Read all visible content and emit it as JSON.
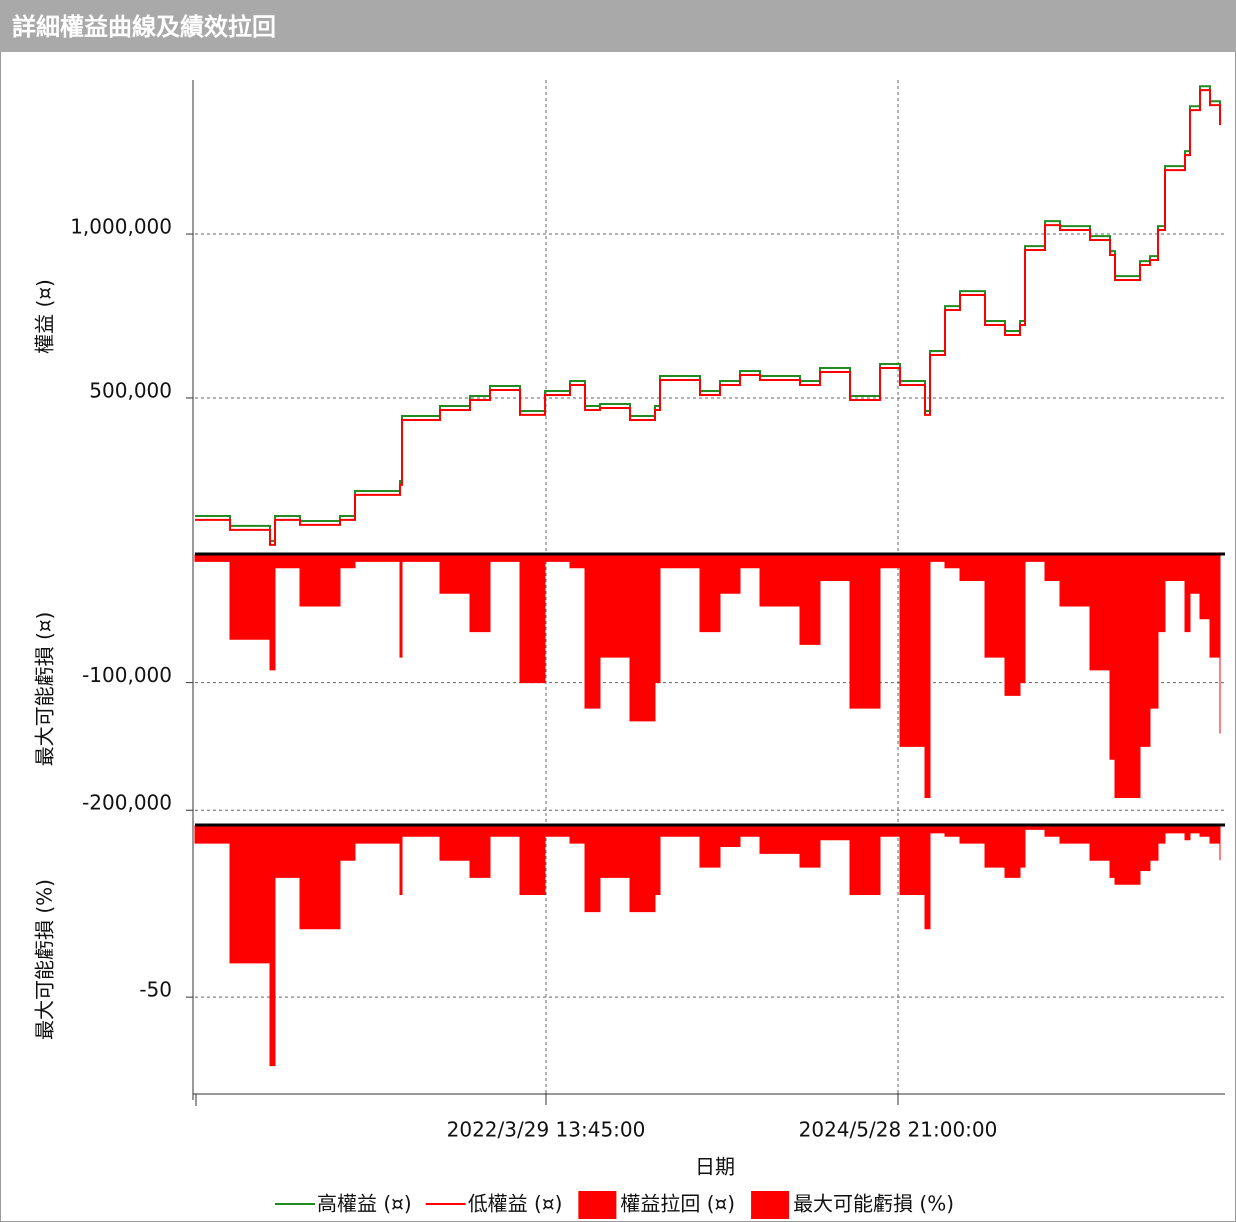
{
  "window_title": "詳細權益曲線及績效拉回",
  "chart_data": [
    {
      "type": "line",
      "ylabel": "權益 (¤)",
      "xlim": [
        0,
        1030
      ],
      "ylim": [
        27000,
        1470000
      ],
      "yticks": [
        {
          "value": 500000,
          "label": "500,000"
        },
        {
          "value": 1000000,
          "label": "1,000,000"
        }
      ],
      "grid": true,
      "x": [
        0,
        35,
        75,
        80,
        105,
        145,
        160,
        205,
        207,
        245,
        275,
        295,
        325,
        350,
        375,
        390,
        405,
        435,
        460,
        465,
        505,
        525,
        545,
        565,
        605,
        625,
        655,
        685,
        705,
        730,
        735,
        750,
        765,
        790,
        810,
        825,
        830,
        850,
        865,
        895,
        915,
        920,
        945,
        955,
        963,
        970,
        990,
        995,
        1005,
        1015,
        1025
      ],
      "series": [
        {
          "name": "高權益 (¤)",
          "color": "#228b22",
          "values": [
            140000,
            109600,
            63800,
            140000,
            124800,
            140000,
            216300,
            246800,
            444900,
            475400,
            505900,
            536400,
            460200,
            521100,
            551600,
            475400,
            481500,
            444900,
            475400,
            566900,
            521100,
            551600,
            582100,
            566900,
            551600,
            591300,
            505900,
            603500,
            551600,
            460200,
            643100,
            780300,
            826000,
            734600,
            704100,
            734600,
            963200,
            1039400,
            1024200,
            993700,
            948000,
            871800,
            917500,
            932700,
            1024200,
            1207100,
            1252900,
            1390000,
            1451000,
            1405300,
            1344300
          ]
        },
        {
          "name": "低權益 (¤)",
          "color": "#ff0000",
          "values": [
            128000,
            97600,
            51800,
            128000,
            112800,
            128000,
            204300,
            234800,
            432900,
            463400,
            493900,
            524400,
            448200,
            509100,
            539600,
            463400,
            469500,
            432900,
            463400,
            554900,
            509100,
            539600,
            570100,
            554900,
            539600,
            579300,
            493900,
            591500,
            539600,
            448200,
            631100,
            768300,
            814000,
            722600,
            692100,
            722600,
            951200,
            1027400,
            1012200,
            981700,
            936000,
            859800,
            905500,
            920700,
            1012200,
            1195100,
            1240900,
            1378000,
            1439000,
            1393300,
            1332300
          ]
        }
      ]
    },
    {
      "type": "area",
      "ylabel": "最大可能虧損 (¤)",
      "xlim": [
        0,
        1030
      ],
      "ylim": [
        -210000,
        0
      ],
      "yticks": [
        {
          "value": -200000,
          "label": "-200,000"
        },
        {
          "value": -100000,
          "label": "-100,000"
        }
      ],
      "grid": true,
      "x": [
        0,
        35,
        75,
        80,
        105,
        145,
        160,
        205,
        207,
        245,
        275,
        295,
        325,
        350,
        375,
        390,
        405,
        435,
        460,
        465,
        505,
        525,
        545,
        565,
        605,
        625,
        655,
        685,
        705,
        730,
        735,
        750,
        765,
        790,
        810,
        825,
        830,
        850,
        865,
        895,
        915,
        920,
        945,
        955,
        963,
        970,
        990,
        995,
        1005,
        1015,
        1025
      ],
      "series": [
        {
          "name": "權益拉回 (¤)",
          "color": "#ff0000",
          "values": [
            -5000,
            -66000,
            -90000,
            -10000,
            -40000,
            -10000,
            -5000,
            -80000,
            -5000,
            -30000,
            -60000,
            -5000,
            -100000,
            -5000,
            -10000,
            -120000,
            -80000,
            -130000,
            -100000,
            -10000,
            -60000,
            -30000,
            -10000,
            -40000,
            -70000,
            -20000,
            -120000,
            -10000,
            -150000,
            -190000,
            -5000,
            -10000,
            -20000,
            -80000,
            -110000,
            -100000,
            -5000,
            -20000,
            -40000,
            -90000,
            -160000,
            -190000,
            -150000,
            -120000,
            -60000,
            -20000,
            -60000,
            -30000,
            -50000,
            -80000,
            -140000
          ]
        }
      ]
    },
    {
      "type": "area",
      "ylabel": "最大可能虧損 (%)",
      "xlabel": "日期",
      "xlim": [
        0,
        1030
      ],
      "ylim": [
        -78,
        0
      ],
      "xticks": [
        {
          "value": 351,
          "label": "2022/3/29 13:45:00"
        },
        {
          "value": 703,
          "label": "2024/5/28 21:00:00"
        }
      ],
      "yticks": [
        -50
      ],
      "grid": true,
      "x": [
        0,
        35,
        75,
        80,
        105,
        145,
        160,
        205,
        207,
        245,
        275,
        295,
        325,
        350,
        375,
        390,
        405,
        435,
        460,
        465,
        505,
        525,
        545,
        565,
        605,
        625,
        655,
        685,
        705,
        730,
        735,
        750,
        765,
        790,
        810,
        825,
        830,
        850,
        865,
        895,
        915,
        920,
        945,
        955,
        963,
        970,
        990,
        995,
        1005,
        1015,
        1025
      ],
      "series": [
        {
          "name": "最大可能虧損 (%)",
          "color": "#ff0000",
          "values": [
            -5,
            -40,
            -70,
            -15,
            -30,
            -10,
            -5,
            -20,
            -3,
            -10,
            -15,
            -3,
            -20,
            -3,
            -5,
            -25,
            -15,
            -25,
            -20,
            -3,
            -12,
            -6,
            -3,
            -8,
            -12,
            -4,
            -20,
            -3,
            -20,
            -30,
            -2,
            -3,
            -5,
            -12,
            -15,
            -12,
            -1,
            -3,
            -5,
            -10,
            -15,
            -17,
            -13,
            -10,
            -5,
            -2,
            -4,
            -2,
            -3,
            -5,
            -10
          ]
        }
      ]
    }
  ]
}
